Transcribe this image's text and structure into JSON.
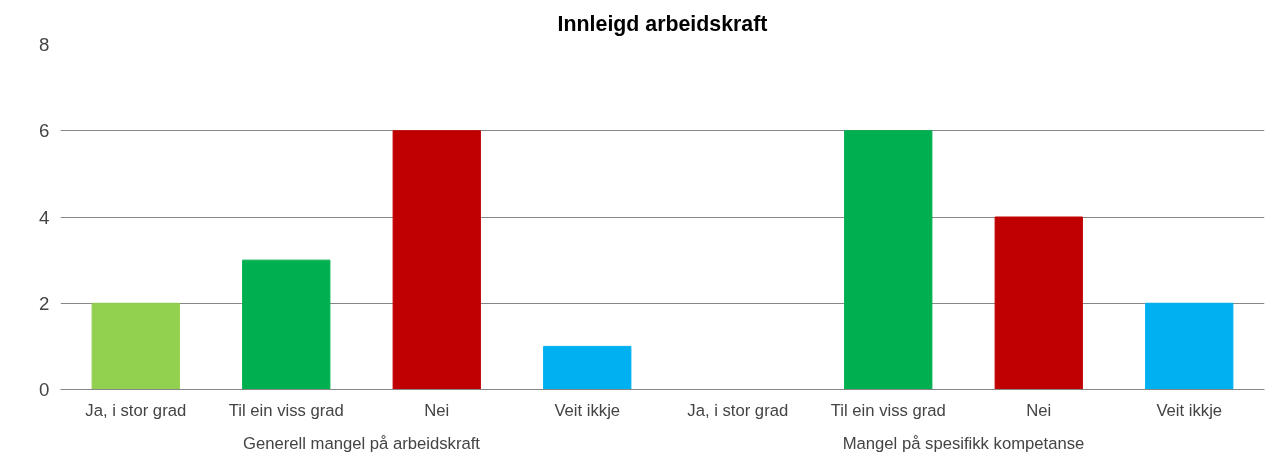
{
  "chart_data": {
    "type": "bar",
    "title": "Innleigd arbeidskraft",
    "categories": [
      "Ja, i stor grad",
      "Til ein viss grad",
      "Nei",
      "Veit ikkje",
      "Ja, i stor grad",
      "Til ein viss grad",
      "Nei",
      "Veit ikkje"
    ],
    "values": [
      2,
      3,
      6,
      1,
      0,
      6,
      4,
      2
    ],
    "colors": [
      "#92d050",
      "#00b050",
      "#c00000",
      "#00b0f0",
      "#92d050",
      "#00b050",
      "#c00000",
      "#00b0f0"
    ],
    "annotations": [
      "Generell mangel på arbeidskraft",
      "Mangel på spesifikk kompetanse"
    ],
    "ylim": [
      0,
      8
    ],
    "yticks": [
      0,
      2,
      4,
      6,
      8
    ],
    "grid": "y"
  }
}
